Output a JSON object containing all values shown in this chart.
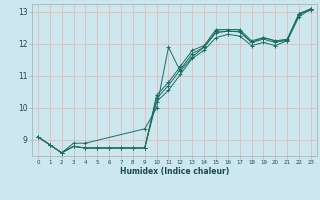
{
  "background_color": "#cce8ee",
  "grid_color": "#e8b0b0",
  "line_color": "#1a6e64",
  "xlabel": "Humidex (Indice chaleur)",
  "xlim": [
    -0.5,
    23.5
  ],
  "ylim": [
    8.5,
    13.25
  ],
  "yticks": [
    9,
    10,
    11,
    12,
    13
  ],
  "xticks": [
    0,
    1,
    2,
    3,
    4,
    5,
    6,
    7,
    8,
    9,
    10,
    11,
    12,
    13,
    14,
    15,
    16,
    17,
    18,
    19,
    20,
    21,
    22,
    23
  ],
  "lines": [
    {
      "x": [
        0,
        1,
        2,
        3,
        4,
        5,
        6,
        7,
        8,
        9,
        10,
        11,
        12,
        13,
        14,
        15,
        16,
        17,
        18,
        19,
        20,
        21,
        22,
        23
      ],
      "y": [
        9.1,
        8.85,
        8.6,
        8.8,
        8.75,
        8.75,
        8.75,
        8.75,
        8.75,
        8.75,
        10.4,
        10.8,
        11.3,
        11.8,
        11.95,
        12.45,
        12.45,
        12.45,
        12.1,
        12.2,
        12.1,
        12.15,
        12.95,
        13.1
      ]
    },
    {
      "x": [
        0,
        1,
        2,
        3,
        4,
        5,
        6,
        7,
        8,
        9,
        10,
        11,
        12,
        13,
        14,
        15,
        16,
        17,
        18,
        19,
        20,
        21,
        22,
        23
      ],
      "y": [
        9.1,
        8.85,
        8.6,
        8.8,
        8.75,
        8.75,
        8.75,
        8.75,
        8.75,
        8.75,
        10.2,
        10.55,
        11.05,
        11.55,
        11.8,
        12.2,
        12.3,
        12.25,
        11.95,
        12.05,
        11.95,
        12.1,
        12.85,
        13.1
      ]
    },
    {
      "x": [
        0,
        1,
        2,
        3,
        4,
        9,
        10,
        11,
        12,
        13,
        14,
        15,
        16,
        17,
        18,
        19,
        20,
        21,
        22,
        23
      ],
      "y": [
        9.1,
        8.85,
        8.6,
        8.9,
        8.9,
        9.35,
        10.0,
        11.9,
        11.15,
        11.6,
        11.9,
        12.4,
        12.4,
        12.4,
        12.05,
        12.2,
        12.1,
        12.1,
        12.95,
        13.05
      ]
    },
    {
      "x": [
        0,
        1,
        2,
        3,
        4,
        5,
        6,
        7,
        8,
        9,
        10,
        11,
        12,
        13,
        14,
        15,
        16,
        17,
        18,
        19,
        20,
        21,
        22,
        23
      ],
      "y": [
        9.1,
        8.85,
        8.6,
        8.8,
        8.75,
        8.75,
        8.75,
        8.75,
        8.75,
        8.75,
        10.3,
        10.7,
        11.2,
        11.7,
        11.9,
        12.35,
        12.4,
        12.38,
        12.05,
        12.15,
        12.05,
        12.12,
        12.92,
        13.1
      ]
    }
  ]
}
